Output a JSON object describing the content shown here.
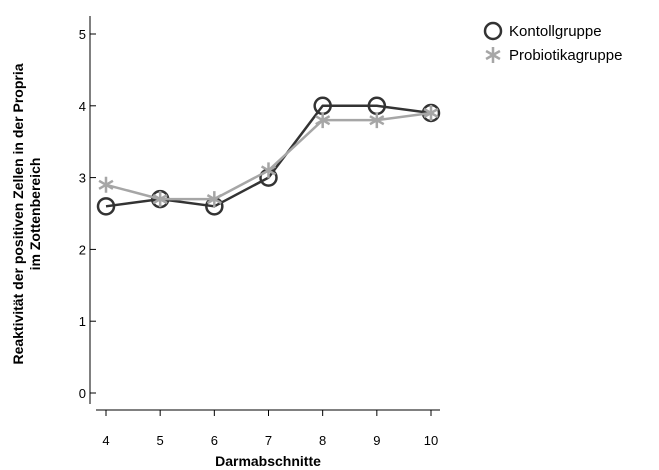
{
  "chart_data": {
    "type": "line",
    "xlabel": "Darmabschnitte",
    "ylabel_lines": [
      "Reaktivität der positiven Zellen in der Propria",
      "im Zottenbereich"
    ],
    "x": [
      4,
      5,
      6,
      7,
      8,
      9,
      10
    ],
    "xlim": [
      4,
      10
    ],
    "ylim": [
      0,
      5
    ],
    "x_ticks": [
      "4",
      "5",
      "6",
      "7",
      "8",
      "9",
      "10"
    ],
    "y_ticks": [
      "0",
      "1",
      "2",
      "3",
      "4",
      "5"
    ],
    "grid": false,
    "legend_position": "top-right",
    "series": [
      {
        "name": "Kontollgruppe",
        "values": [
          2.6,
          2.7,
          2.6,
          3.0,
          4.0,
          4.0,
          3.9
        ],
        "color": "#333333",
        "marker": "circle"
      },
      {
        "name": "Probiotikagruppe",
        "values": [
          2.9,
          2.7,
          2.7,
          3.1,
          3.8,
          3.8,
          3.9
        ],
        "color": "#a6a6a6",
        "marker": "star"
      }
    ]
  }
}
